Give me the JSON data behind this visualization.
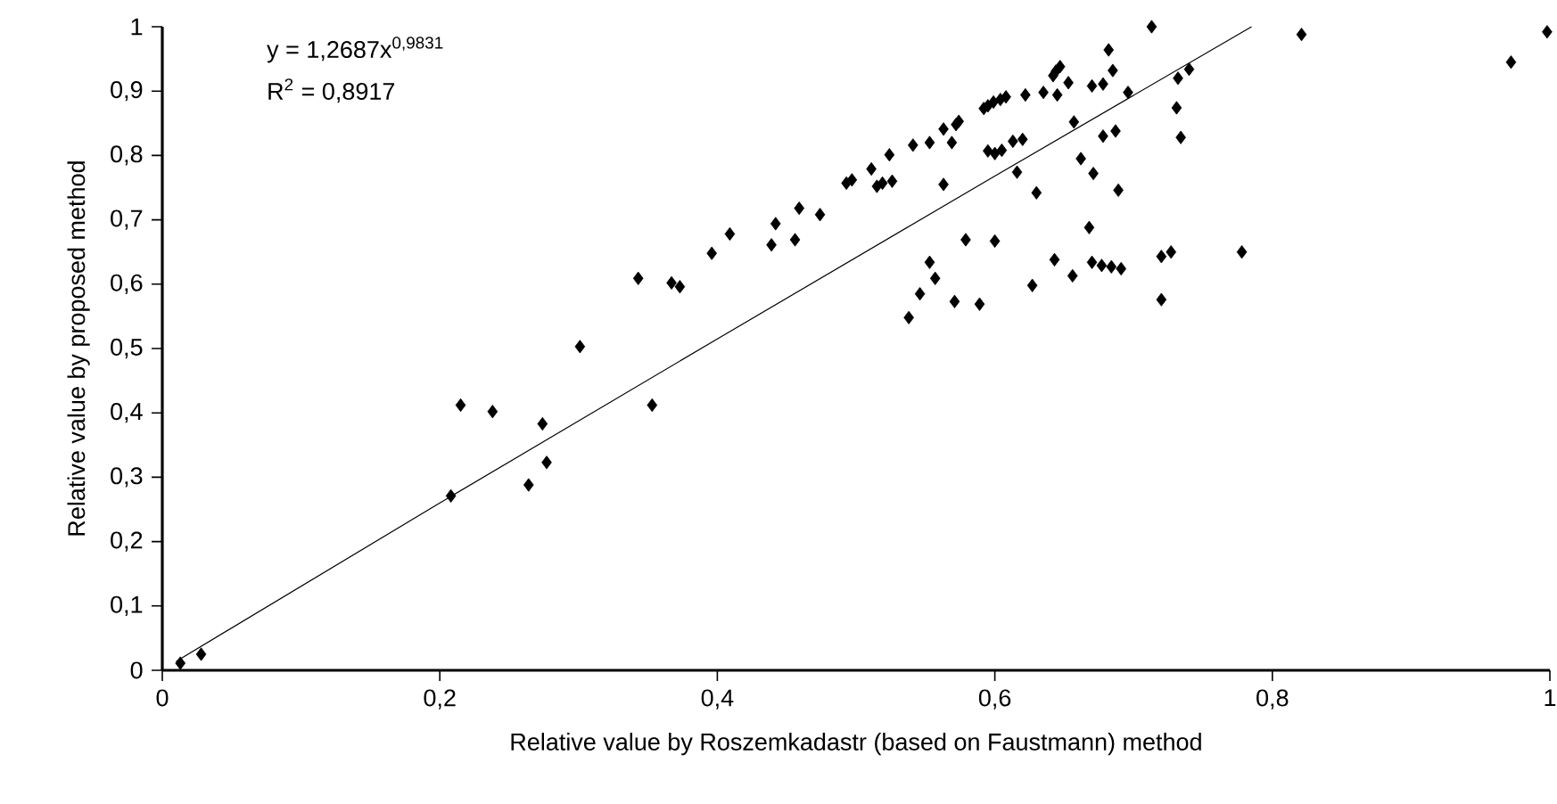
{
  "chart_data": {
    "type": "scatter",
    "xlabel": "Relative value by Roszemkadastr (based on Faustmann) method",
    "ylabel": "Relative value by proposed method",
    "annotations": [
      "y = 1,2687x$^{0,9831}$",
      "R$^{2}$ = 0,8917"
    ],
    "xlim": [
      0,
      1
    ],
    "ylim": [
      0,
      1
    ],
    "xticks": [
      0,
      {
        "value": 0.2,
        "label": "0,2"
      },
      {
        "value": 0.4,
        "label": "0,4"
      },
      {
        "value": 0.6,
        "label": "0,6"
      },
      {
        "value": 0.8,
        "label": "0,8"
      },
      1
    ],
    "yticks": [
      0,
      {
        "value": 0.1,
        "label": "0,1"
      },
      {
        "value": 0.2,
        "label": "0,2"
      },
      {
        "value": 0.3,
        "label": "0,3"
      },
      {
        "value": 0.4,
        "label": "0,4"
      },
      {
        "value": 0.5,
        "label": "0,5"
      },
      {
        "value": 0.6,
        "label": "0,6"
      },
      {
        "value": 0.7,
        "label": "0,7"
      },
      {
        "value": 0.8,
        "label": "0,8"
      },
      {
        "value": 0.9,
        "label": "0,9"
      },
      1
    ],
    "marker": "diamond",
    "series": [
      {
        "color": "#000000",
        "x": [
          0.013,
          0.028,
          0.208,
          0.215,
          0.238,
          0.274,
          0.277,
          0.264,
          0.301,
          0.343,
          0.353,
          0.367,
          0.373,
          0.396,
          0.409,
          0.439,
          0.442,
          0.456,
          0.459,
          0.474,
          0.493,
          0.497,
          0.713,
          0.821,
          0.682,
          0.647,
          0.644,
          0.642,
          0.685,
          0.653,
          0.74,
          0.732,
          0.678,
          0.67,
          0.696,
          0.645,
          0.635,
          0.622,
          0.608,
          0.604,
          0.599,
          0.595,
          0.592,
          0.731,
          0.574,
          0.572,
          0.563,
          0.569,
          0.553,
          0.541,
          0.524,
          0.511,
          0.657,
          0.734,
          0.687,
          0.678,
          0.62,
          0.613,
          0.595,
          0.6,
          0.605,
          0.515,
          0.519,
          0.526,
          0.563,
          0.616,
          0.662,
          0.671,
          0.63,
          0.689,
          0.668,
          0.579,
          0.6,
          0.553,
          0.557,
          0.546,
          0.538,
          0.571,
          0.589,
          0.627,
          0.643,
          0.656,
          0.67,
          0.677,
          0.684,
          0.691,
          0.72,
          0.727,
          0.72,
          0.778,
          0.972,
          0.998
        ],
        "values": [
          0.011,
          0.025,
          0.271,
          0.412,
          0.402,
          0.383,
          0.323,
          0.288,
          0.503,
          0.609,
          0.412,
          0.602,
          0.596,
          0.648,
          0.678,
          0.661,
          0.694,
          0.669,
          0.718,
          0.708,
          0.757,
          0.762,
          1.0,
          0.988,
          0.964,
          0.938,
          0.931,
          0.924,
          0.932,
          0.913,
          0.934,
          0.92,
          0.911,
          0.908,
          0.898,
          0.894,
          0.898,
          0.894,
          0.891,
          0.887,
          0.883,
          0.877,
          0.873,
          0.874,
          0.853,
          0.848,
          0.841,
          0.82,
          0.82,
          0.816,
          0.801,
          0.779,
          0.852,
          0.828,
          0.838,
          0.83,
          0.825,
          0.822,
          0.807,
          0.803,
          0.808,
          0.752,
          0.757,
          0.76,
          0.755,
          0.774,
          0.795,
          0.772,
          0.742,
          0.746,
          0.688,
          0.669,
          0.667,
          0.634,
          0.609,
          0.585,
          0.548,
          0.573,
          0.569,
          0.598,
          0.638,
          0.613,
          0.634,
          0.629,
          0.627,
          0.624,
          0.643,
          0.65,
          0.576,
          0.65,
          0.945,
          0.992
        ]
      },
      {
        "type": "line",
        "color": "#000000",
        "marker": "none",
        "line_style": "solid",
        "x": [
          0.01,
          0.2,
          0.4,
          0.6,
          0.785
        ],
        "values": [
          0.014,
          0.26,
          0.515,
          0.768,
          1.0
        ]
      }
    ]
  }
}
